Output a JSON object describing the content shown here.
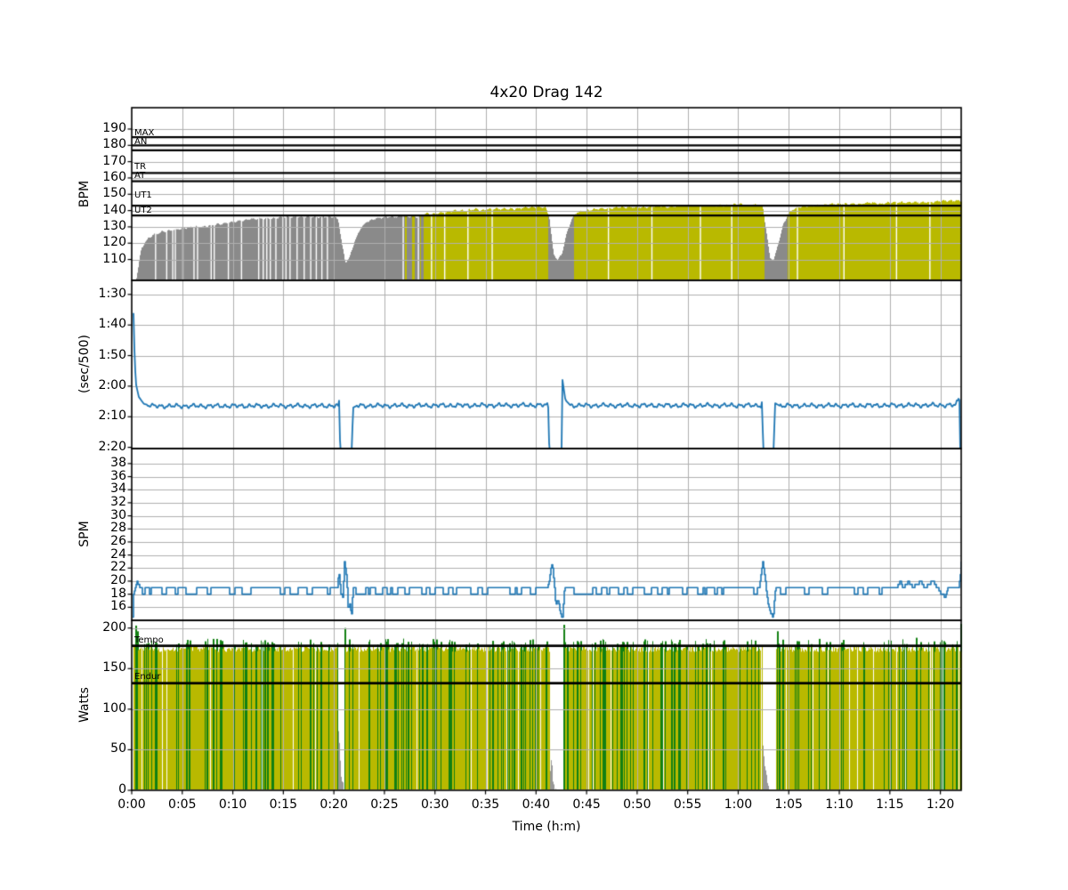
{
  "title": "4x20 Drag 142",
  "x_axis": {
    "label": "Time (h:m)",
    "ticks": [
      0,
      5,
      10,
      15,
      20,
      25,
      30,
      35,
      40,
      45,
      50,
      55,
      60,
      65,
      70,
      75,
      80
    ],
    "tick_labels": [
      "0:00",
      "0:05",
      "0:10",
      "0:15",
      "0:20",
      "0:25",
      "0:30",
      "0:35",
      "0:40",
      "0:45",
      "0:50",
      "0:55",
      "1:00",
      "1:05",
      "1:10",
      "1:15",
      "1:20"
    ],
    "xmax_minutes": 82.06
  },
  "colors": {
    "hr_below_zone": "#8a8a8a",
    "hr_in_zone": "#b9b900",
    "pace_line": "#1f77b4",
    "spm_line": "#1f77b4",
    "watts_work": "#b9b900",
    "watts_above_tempo": "#128012",
    "watts_rest": "#979797",
    "grid": "#b0b0b0",
    "axis": "#000000",
    "background": "#ffffff"
  },
  "chart_data": [
    {
      "type": "area",
      "name": "heart_rate",
      "ylabel": "BPM",
      "ylim": [
        97.2,
        203.1
      ],
      "yticks": [
        190,
        180,
        170,
        160,
        150,
        140,
        130,
        120,
        110
      ],
      "ytick_labels": [
        "190",
        "180",
        "170",
        "160",
        "150",
        "140",
        "130",
        "120",
        "110"
      ],
      "zone_threshold": 137,
      "zone_lines": [
        185,
        180,
        177,
        163,
        158,
        143,
        137
      ],
      "zone_labels": [
        {
          "text": "MAX",
          "bpm": 187.3
        },
        {
          "text": "AN",
          "bpm": 181.6
        },
        {
          "text": "TR",
          "bpm": 166.6
        },
        {
          "text": "AT",
          "bpm": 161.2
        },
        {
          "text": "UT1",
          "bpm": 148.9
        },
        {
          "text": "UT2",
          "bpm": 139.6
        }
      ],
      "points": [
        [
          0.4,
          97
        ],
        [
          0.6,
          105
        ],
        [
          0.9,
          116
        ],
        [
          1.3,
          121
        ],
        [
          2,
          125
        ],
        [
          3,
          127
        ],
        [
          4,
          128
        ],
        [
          5,
          129
        ],
        [
          6,
          130
        ],
        [
          7,
          130
        ],
        [
          8,
          131
        ],
        [
          9,
          132
        ],
        [
          10,
          133
        ],
        [
          11,
          134
        ],
        [
          12,
          135
        ],
        [
          13,
          135
        ],
        [
          14,
          135
        ],
        [
          15,
          136
        ],
        [
          16,
          136
        ],
        [
          17,
          136
        ],
        [
          18,
          136
        ],
        [
          19,
          136
        ],
        [
          20,
          136
        ],
        [
          20.4,
          134
        ],
        [
          20.8,
          118
        ],
        [
          21.1,
          108
        ],
        [
          21.5,
          111
        ],
        [
          22,
          121
        ],
        [
          22.6,
          129
        ],
        [
          23.2,
          133
        ],
        [
          24,
          135
        ],
        [
          25,
          136
        ],
        [
          26,
          136
        ],
        [
          27,
          137
        ],
        [
          27.4,
          136
        ],
        [
          27.8,
          137
        ],
        [
          28.2,
          136
        ],
        [
          28.6,
          137
        ],
        [
          29,
          138
        ],
        [
          30,
          138
        ],
        [
          31,
          139
        ],
        [
          32,
          140
        ],
        [
          33,
          140
        ],
        [
          34,
          141
        ],
        [
          34.6,
          140
        ],
        [
          35.2,
          141
        ],
        [
          36,
          141
        ],
        [
          37,
          141
        ],
        [
          38,
          141
        ],
        [
          39,
          142
        ],
        [
          40,
          142
        ],
        [
          40.9,
          142
        ],
        [
          41.3,
          135
        ],
        [
          41.7,
          113
        ],
        [
          42.1,
          110
        ],
        [
          42.5,
          113
        ],
        [
          43,
          126
        ],
        [
          43.5,
          135
        ],
        [
          44,
          139
        ],
        [
          45,
          140
        ],
        [
          46,
          141
        ],
        [
          47,
          141
        ],
        [
          48,
          142
        ],
        [
          49,
          142
        ],
        [
          50,
          142
        ],
        [
          51,
          142
        ],
        [
          52,
          143
        ],
        [
          53,
          142
        ],
        [
          54,
          143
        ],
        [
          55,
          143
        ],
        [
          56,
          143
        ],
        [
          57,
          143
        ],
        [
          58,
          143
        ],
        [
          59,
          143
        ],
        [
          60,
          144
        ],
        [
          61,
          143
        ],
        [
          62,
          144
        ],
        [
          62.4,
          142
        ],
        [
          62.8,
          125
        ],
        [
          63.1,
          111
        ],
        [
          63.5,
          110
        ],
        [
          63.9,
          119
        ],
        [
          64.4,
          131
        ],
        [
          64.9,
          138
        ],
        [
          65.4,
          141
        ],
        [
          66,
          142
        ],
        [
          67,
          143
        ],
        [
          68,
          143
        ],
        [
          69,
          144
        ],
        [
          70,
          144
        ],
        [
          71,
          144
        ],
        [
          72,
          144
        ],
        [
          73,
          145
        ],
        [
          74,
          144
        ],
        [
          75,
          145
        ],
        [
          76,
          145
        ],
        [
          77,
          145
        ],
        [
          78,
          145
        ],
        [
          79,
          145
        ],
        [
          80,
          146
        ],
        [
          81,
          146
        ],
        [
          82.06,
          146
        ]
      ],
      "gap_times": [
        2.3,
        3.4,
        4.0,
        4.25,
        5.0,
        6.1,
        6.45,
        7.8,
        8.1,
        9.5,
        10.8,
        12.5,
        12.95,
        13.3,
        13.65,
        14.2,
        14.9,
        15.2,
        15.6,
        16.3,
        17.0,
        17.65,
        18.2,
        18.75,
        19.3,
        26.8,
        28.3,
        29.6,
        30.9,
        33.2,
        35.6,
        47.1,
        51.4,
        56.2,
        59.3,
        65.8,
        70.4,
        75.6,
        78.9
      ]
    },
    {
      "type": "line",
      "name": "pace",
      "ylabel": "(sec/500)",
      "inverted": true,
      "ylim": [
        85.4,
        140.4
      ],
      "yticks": [
        90,
        100,
        110,
        120,
        130,
        140
      ],
      "ytick_labels": [
        "1:30",
        "1:40",
        "1:50",
        "2:00",
        "2:10",
        "2:20"
      ],
      "points": [
        [
          0.12,
          86
        ],
        [
          0.22,
          104
        ],
        [
          0.4,
          119
        ],
        [
          0.7,
          123.5
        ],
        [
          1.2,
          125.8
        ],
        [
          2,
          126.5
        ],
        [
          20.45,
          126.4
        ],
        [
          20.55,
          123.8
        ],
        [
          20.62,
          142
        ],
        [
          21.78,
          142
        ],
        [
          21.88,
          127
        ],
        [
          22.3,
          126.4
        ],
        [
          41.2,
          126.2
        ],
        [
          41.32,
          142
        ],
        [
          42.52,
          142
        ],
        [
          42.6,
          117.6
        ],
        [
          42.9,
          124.5
        ],
        [
          43.4,
          126.3
        ],
        [
          62.3,
          126.3
        ],
        [
          62.38,
          124
        ],
        [
          62.46,
          142
        ],
        [
          63.52,
          142
        ],
        [
          63.62,
          125.5
        ],
        [
          64.1,
          126.4
        ],
        [
          81.5,
          126.2
        ],
        [
          81.88,
          123.5
        ],
        [
          81.95,
          142
        ],
        [
          82.06,
          142
        ]
      ],
      "steady_ranges": [
        [
          1.5,
          20.4
        ],
        [
          22.2,
          41.15
        ],
        [
          43.4,
          62.25
        ],
        [
          64.1,
          81.7
        ]
      ],
      "noise_amp": 0.9,
      "seed": 7
    },
    {
      "type": "line",
      "name": "stroke_rate",
      "ylabel": "SPM",
      "ylim": [
        14,
        40.3
      ],
      "yticks": [
        38,
        36,
        34,
        32,
        30,
        28,
        26,
        24,
        22,
        20,
        18,
        16
      ],
      "ytick_labels": [
        "38",
        "36",
        "34",
        "32",
        "30",
        "28",
        "26",
        "24",
        "22",
        "20",
        "18",
        "16"
      ],
      "points": [
        [
          0.08,
          14
        ],
        [
          0.18,
          18
        ],
        [
          0.35,
          19
        ],
        [
          0.55,
          20
        ],
        [
          0.8,
          19
        ],
        [
          5.2,
          19
        ],
        [
          5.3,
          20
        ],
        [
          5.45,
          19
        ],
        [
          20.35,
          19
        ],
        [
          20.5,
          21.5
        ],
        [
          20.68,
          18
        ],
        [
          20.88,
          17.5
        ],
        [
          21.05,
          23
        ],
        [
          21.25,
          20.5
        ],
        [
          21.42,
          15.5
        ],
        [
          21.58,
          16.5
        ],
        [
          21.72,
          14.5
        ],
        [
          21.9,
          19
        ],
        [
          41.1,
          19
        ],
        [
          41.3,
          20
        ],
        [
          41.45,
          22
        ],
        [
          41.6,
          23
        ],
        [
          41.78,
          19.5
        ],
        [
          41.95,
          16.5
        ],
        [
          42.18,
          17
        ],
        [
          42.42,
          15
        ],
        [
          42.62,
          14.5
        ],
        [
          42.82,
          19
        ],
        [
          62.1,
          19
        ],
        [
          62.25,
          21
        ],
        [
          62.4,
          23
        ],
        [
          62.55,
          22
        ],
        [
          62.78,
          18.5
        ],
        [
          63,
          16
        ],
        [
          63.22,
          15
        ],
        [
          63.45,
          14.5
        ],
        [
          63.68,
          19
        ],
        [
          64,
          19
        ],
        [
          75.7,
          19
        ],
        [
          76,
          20
        ],
        [
          76.3,
          19
        ],
        [
          76.85,
          20
        ],
        [
          77.25,
          19
        ],
        [
          78.05,
          20
        ],
        [
          78.45,
          19
        ],
        [
          79.25,
          20
        ],
        [
          79.65,
          19
        ],
        [
          80.15,
          18
        ],
        [
          80.45,
          17.5
        ],
        [
          80.75,
          19
        ],
        [
          81.8,
          19
        ],
        [
          81.95,
          20.5
        ],
        [
          82.06,
          23
        ]
      ],
      "dither_ranges": [
        [
          1.0,
          20.3
        ],
        [
          22.0,
          41.05
        ],
        [
          42.9,
          62.05
        ],
        [
          63.8,
          75.6
        ]
      ],
      "dither_low": 18,
      "dither_high": 19,
      "dither_p_low": 0.34,
      "seed": 11
    },
    {
      "type": "bar",
      "name": "power",
      "ylabel": "Watts",
      "ylim": [
        0,
        209.5
      ],
      "yticks": [
        200,
        150,
        100,
        50,
        0
      ],
      "ytick_labels": [
        "200",
        "150",
        "100",
        "50",
        "0"
      ],
      "ref_lines": [
        {
          "text": "Tempo",
          "watts": 178,
          "label_watts": 184
        },
        {
          "text": "Endur",
          "watts": 132,
          "label_watts": 139
        }
      ],
      "work_intervals": [
        [
          0.12,
          20.35
        ],
        [
          21.0,
          41.3
        ],
        [
          42.62,
          62.42
        ],
        [
          63.7,
          82.06
        ]
      ],
      "base_watts": 174,
      "top_jitter": 3.5,
      "green_min": 178,
      "green_max": 187,
      "green_fraction": 0.2,
      "gap_fraction": 0.05,
      "green_spikes": [
        [
          0.35,
          203
        ],
        [
          0.55,
          196
        ],
        [
          4.6,
          181
        ],
        [
          8.9,
          184
        ],
        [
          21.05,
          200
        ],
        [
          27.3,
          183
        ],
        [
          34.2,
          181
        ],
        [
          42.7,
          204
        ],
        [
          48.5,
          183
        ],
        [
          57.1,
          181
        ],
        [
          63.8,
          196
        ],
        [
          70.2,
          182
        ],
        [
          77.6,
          188
        ],
        [
          82.0,
          205
        ]
      ],
      "rest_ramps": [
        {
          "range": [
            20.35,
            20.97
          ],
          "peak": 95
        },
        {
          "range": [
            41.3,
            41.95
          ],
          "peak": 58
        },
        {
          "range": [
            62.42,
            63.06
          ],
          "peak": 58
        }
      ],
      "seed": 13
    }
  ]
}
